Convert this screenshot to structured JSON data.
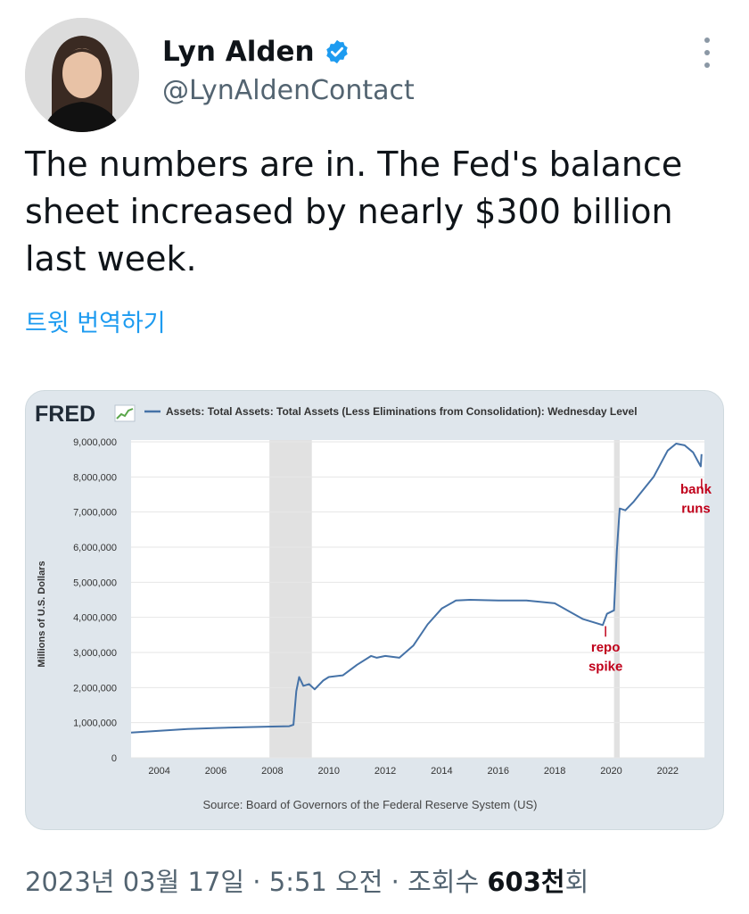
{
  "user": {
    "display_name": "Lyn Alden",
    "handle": "@LynAldenContact"
  },
  "tweet": {
    "text": "The numbers are in. The Fed's balance sheet increased by nearly $300 billion last week.",
    "translate_label": "트윗 번역하기"
  },
  "footer": {
    "date": "2023년 03월 17일",
    "time": "5:51 오전",
    "views_label": "조회수",
    "views_value": "603천",
    "views_suffix": "회"
  },
  "chart_data": {
    "type": "line",
    "logo": "FRED",
    "legend": "Assets: Total Assets: Total Assets (Less Eliminations from Consolidation): Wednesday Level",
    "ylabel": "Millions of U.S. Dollars",
    "source": "Source: Board of Governors of the Federal Reserve System (US)",
    "xlim": [
      2003,
      2023.3
    ],
    "ylim": [
      0,
      9000000
    ],
    "x_ticks": [
      "2004",
      "2006",
      "2008",
      "2010",
      "2012",
      "2014",
      "2016",
      "2018",
      "2020",
      "2022"
    ],
    "y_ticks": [
      "0",
      "1,000,000",
      "2,000,000",
      "3,000,000",
      "4,000,000",
      "5,000,000",
      "6,000,000",
      "7,000,000",
      "8,000,000",
      "9,000,000"
    ],
    "recessions": [
      [
        2007.9,
        2009.4
      ],
      [
        2020.1,
        2020.3
      ]
    ],
    "annotations": [
      {
        "text": "repo",
        "x": 2019.8,
        "y": 3150000
      },
      {
        "text": "spike",
        "x": 2019.8,
        "y": 2600000
      },
      {
        "text": "bank",
        "x": 2023.0,
        "y": 7650000
      },
      {
        "text": "runs",
        "x": 2023.0,
        "y": 7100000
      }
    ],
    "series": [
      {
        "color": "#4572a7",
        "x": [
          2003.0,
          2004.0,
          2005.0,
          2006.0,
          2007.0,
          2008.0,
          2008.6,
          2008.75,
          2008.85,
          2008.95,
          2009.1,
          2009.3,
          2009.5,
          2009.8,
          2010.0,
          2010.5,
          2011.0,
          2011.5,
          2011.7,
          2012.0,
          2012.5,
          2013.0,
          2013.5,
          2014.0,
          2014.5,
          2015.0,
          2016.0,
          2017.0,
          2018.0,
          2019.0,
          2019.7,
          2019.85,
          2020.1,
          2020.2,
          2020.3,
          2020.5,
          2020.8,
          2021.0,
          2021.5,
          2022.0,
          2022.3,
          2022.6,
          2022.9,
          2023.1,
          2023.17,
          2023.2
        ],
        "y": [
          720000,
          770000,
          820000,
          850000,
          870000,
          890000,
          900000,
          940000,
          1900000,
          2300000,
          2050000,
          2100000,
          1950000,
          2200000,
          2300000,
          2350000,
          2650000,
          2900000,
          2850000,
          2900000,
          2850000,
          3200000,
          3800000,
          4250000,
          4480000,
          4500000,
          4480000,
          4480000,
          4400000,
          3950000,
          3780000,
          4100000,
          4200000,
          5900000,
          7100000,
          7050000,
          7300000,
          7500000,
          8000000,
          8750000,
          8950000,
          8900000,
          8700000,
          8400000,
          8300000,
          8650000
        ]
      }
    ]
  }
}
